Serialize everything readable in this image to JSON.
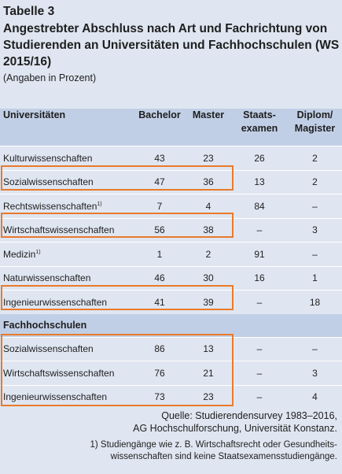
{
  "table_label": "Tabelle 3",
  "title": "Angestrebter Abschluss nach Art und Fachrichtung von Studierenden an Universitäten und Fachhochschulen (WS 2015/16)",
  "subtitle": "(Angaben in Prozent)",
  "header": {
    "col1": "Universitäten",
    "col2": "Bachelor",
    "col3": "Master",
    "col4_line1": "Staats-",
    "col4_line2": "examen",
    "col5_line1": "Diplom/",
    "col5_line2": "Magister"
  },
  "universities": [
    {
      "name": "Kulturwissenschaften",
      "fn": "",
      "bachelor": "43",
      "master": "23",
      "staatsexamen": "26",
      "diplom": "2"
    },
    {
      "name": "Sozialwissenschaften",
      "fn": "",
      "bachelor": "47",
      "master": "36",
      "staatsexamen": "13",
      "diplom": "2"
    },
    {
      "name": "Rechtswissenschaften",
      "fn": "1)",
      "bachelor": "7",
      "master": "4",
      "staatsexamen": "84",
      "diplom": "–"
    },
    {
      "name": "Wirtschaftswissenschaften",
      "fn": "",
      "bachelor": "56",
      "master": "38",
      "staatsexamen": "–",
      "diplom": "3"
    },
    {
      "name": "Medizin",
      "fn": "1)",
      "bachelor": "1",
      "master": "2",
      "staatsexamen": "91",
      "diplom": "–"
    },
    {
      "name": "Naturwissenschaften",
      "fn": "",
      "bachelor": "46",
      "master": "30",
      "staatsexamen": "16",
      "diplom": "1"
    },
    {
      "name": "Ingenieurwissenschaften",
      "fn": "",
      "bachelor": "41",
      "master": "39",
      "staatsexamen": "–",
      "diplom": "18"
    }
  ],
  "fh_section": "Fachhochschulen",
  "fachhochschulen": [
    {
      "name": "Sozialwissenschaften",
      "fn": "",
      "bachelor": "86",
      "master": "13",
      "staatsexamen": "–",
      "diplom": "–"
    },
    {
      "name": "Wirtschaftswissenschaften",
      "fn": "",
      "bachelor": "76",
      "master": "21",
      "staatsexamen": "–",
      "diplom": "3"
    },
    {
      "name": "Ingenieurwissenschaften",
      "fn": "",
      "bachelor": "73",
      "master": "23",
      "staatsexamen": "–",
      "diplom": "4"
    }
  ],
  "source_line1": "Quelle: Studierendensurvey 1983–2016,",
  "source_line2": "AG Hochschulforschung, Universität Konstanz.",
  "footnote_line1": "1) Studiengänge wie z. B. Wirtschaftsrecht oder Gesundheits-",
  "footnote_line2": "wissenschaften sind keine Staatsexamensstudiengänge.",
  "colors": {
    "background": "#dfe6f1",
    "header_band": "#c1cfe6",
    "highlight": "#e97a2b"
  }
}
